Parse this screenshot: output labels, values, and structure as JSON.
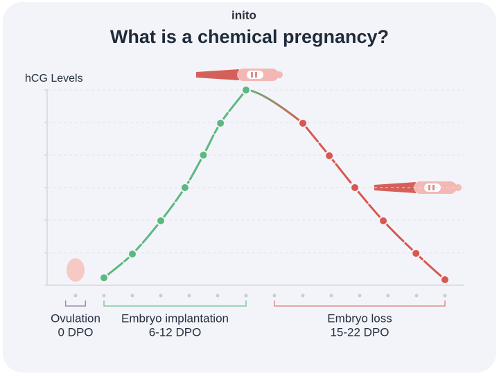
{
  "brand": "inito",
  "chart_data": {
    "type": "line",
    "title": "What is a chemical pregnancy?",
    "y_label": "hCG Levels",
    "xlim": [
      0,
      13
    ],
    "xticks": [
      0,
      1,
      2,
      3,
      4,
      5,
      6,
      7,
      8,
      9,
      10,
      11,
      12,
      13
    ],
    "ylim": [
      0,
      6
    ],
    "yticks": [
      0,
      1,
      2,
      3,
      4,
      5,
      6
    ],
    "grid": true,
    "series": [
      {
        "color": "#5cb87f",
        "x": [
          1,
          2,
          3,
          3.85,
          4.5,
          5.1,
          6
        ],
        "values": [
          0.23,
          0.96,
          1.98,
          3,
          4,
          4.98,
          6
        ]
      },
      {
        "color": "#d9574f",
        "x": [
          8,
          8.93,
          9.83,
          10.83,
          11.98,
          13
        ],
        "values": [
          4.98,
          3.98,
          3,
          1.98,
          0.98,
          0.17
        ]
      }
    ],
    "phases": [
      {
        "label": "Ovulation",
        "sublabel": "0 DPO",
        "range": [
          0,
          0
        ],
        "color": "#9a8fb0"
      },
      {
        "label": "Embryo implantation",
        "sublabel": "6-12 DPO",
        "range": [
          1,
          6
        ],
        "color": "#7ec9a0"
      },
      {
        "label": "Embryo loss",
        "sublabel": "15-22 DPO",
        "range": [
          7,
          13
        ],
        "color": "#e08c8a"
      }
    ]
  }
}
